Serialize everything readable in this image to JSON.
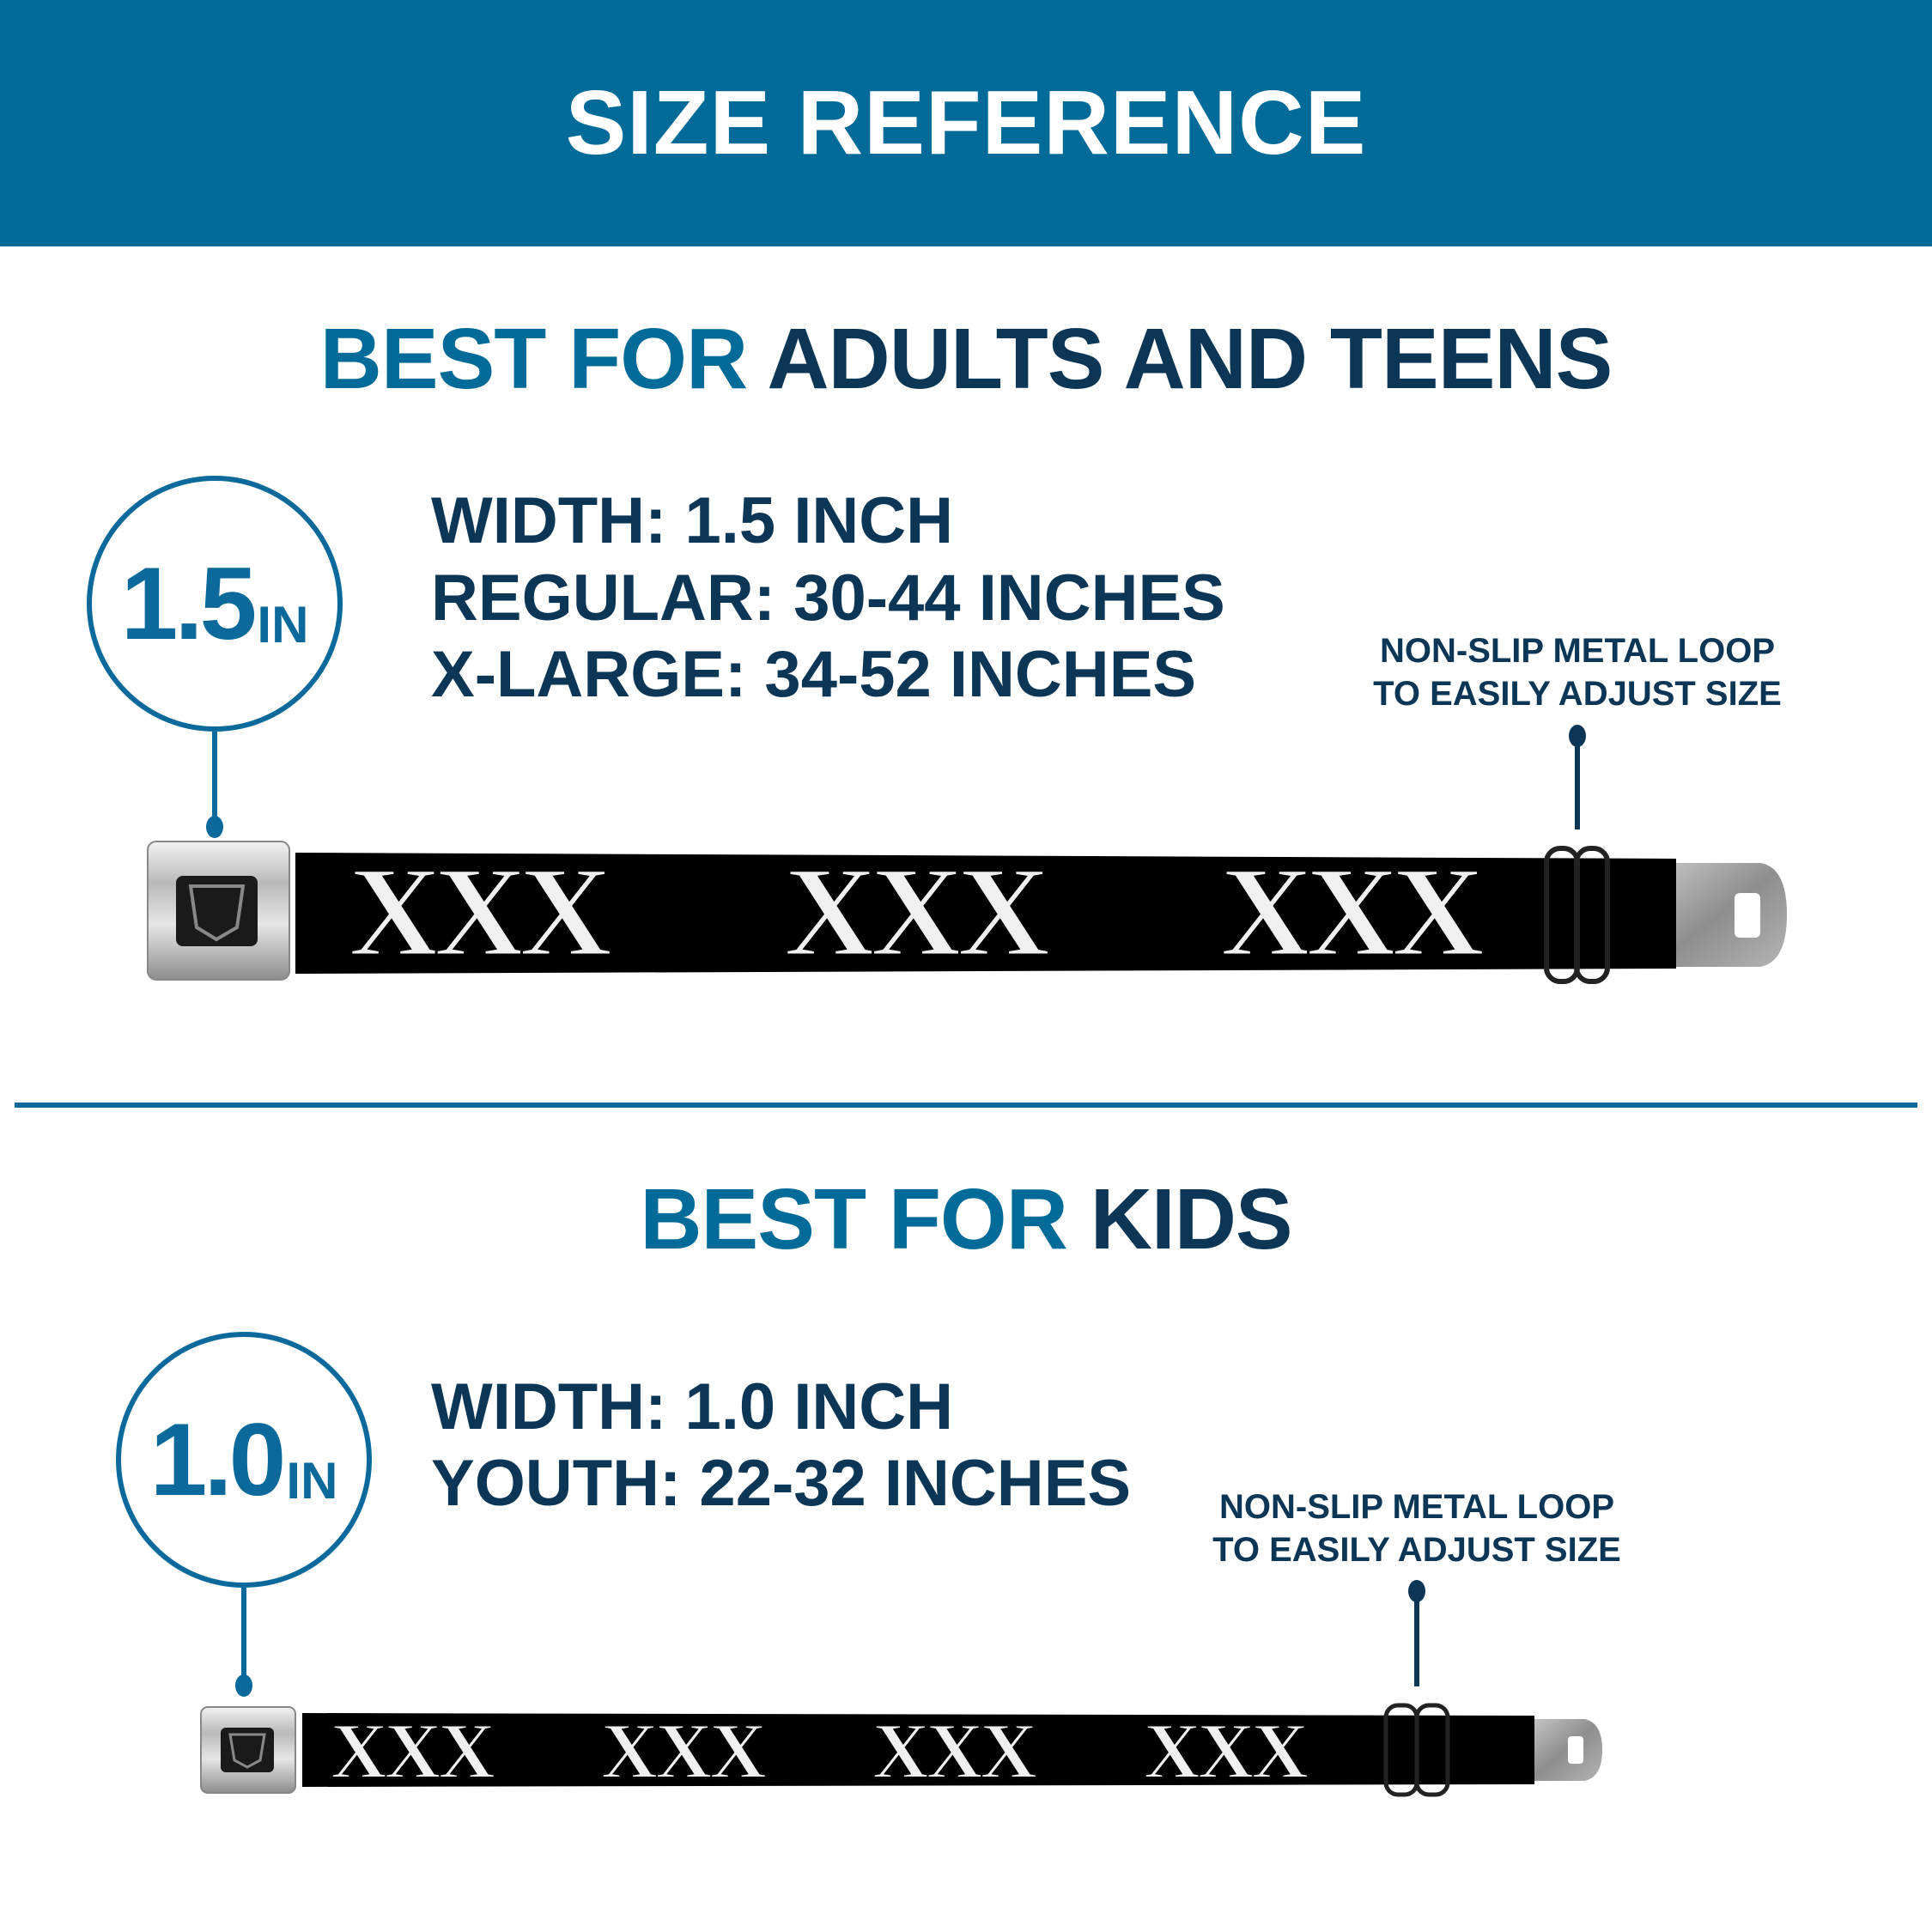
{
  "header": {
    "title": "SIZE REFERENCE"
  },
  "colors": {
    "brand_blue": "#006b99",
    "dark_navy": "#0b3656",
    "belt": "#000000"
  },
  "adult_section": {
    "heading_accent": "BEST FOR",
    "heading_main": "ADULTS AND TEENS",
    "badge_number": "1.5",
    "badge_unit": "IN",
    "specs": [
      "WIDTH: 1.5 INCH",
      "REGULAR: 30-44 INCHES",
      "X-LARGE: 34-52 INCHES"
    ],
    "note_lines": [
      "NON-SLIP METAL LOOP",
      "TO EASILY ADJUST SIZE"
    ],
    "belt_pattern": "XXX"
  },
  "kids_section": {
    "heading_accent": "BEST FOR",
    "heading_main": "KIDS",
    "badge_number": "1.0",
    "badge_unit": "IN",
    "specs": [
      "WIDTH: 1.0 INCH",
      "YOUTH: 22-32 INCHES"
    ],
    "note_lines": [
      "NON-SLIP METAL LOOP",
      "TO EASILY ADJUST SIZE"
    ],
    "belt_pattern": "XXX"
  }
}
